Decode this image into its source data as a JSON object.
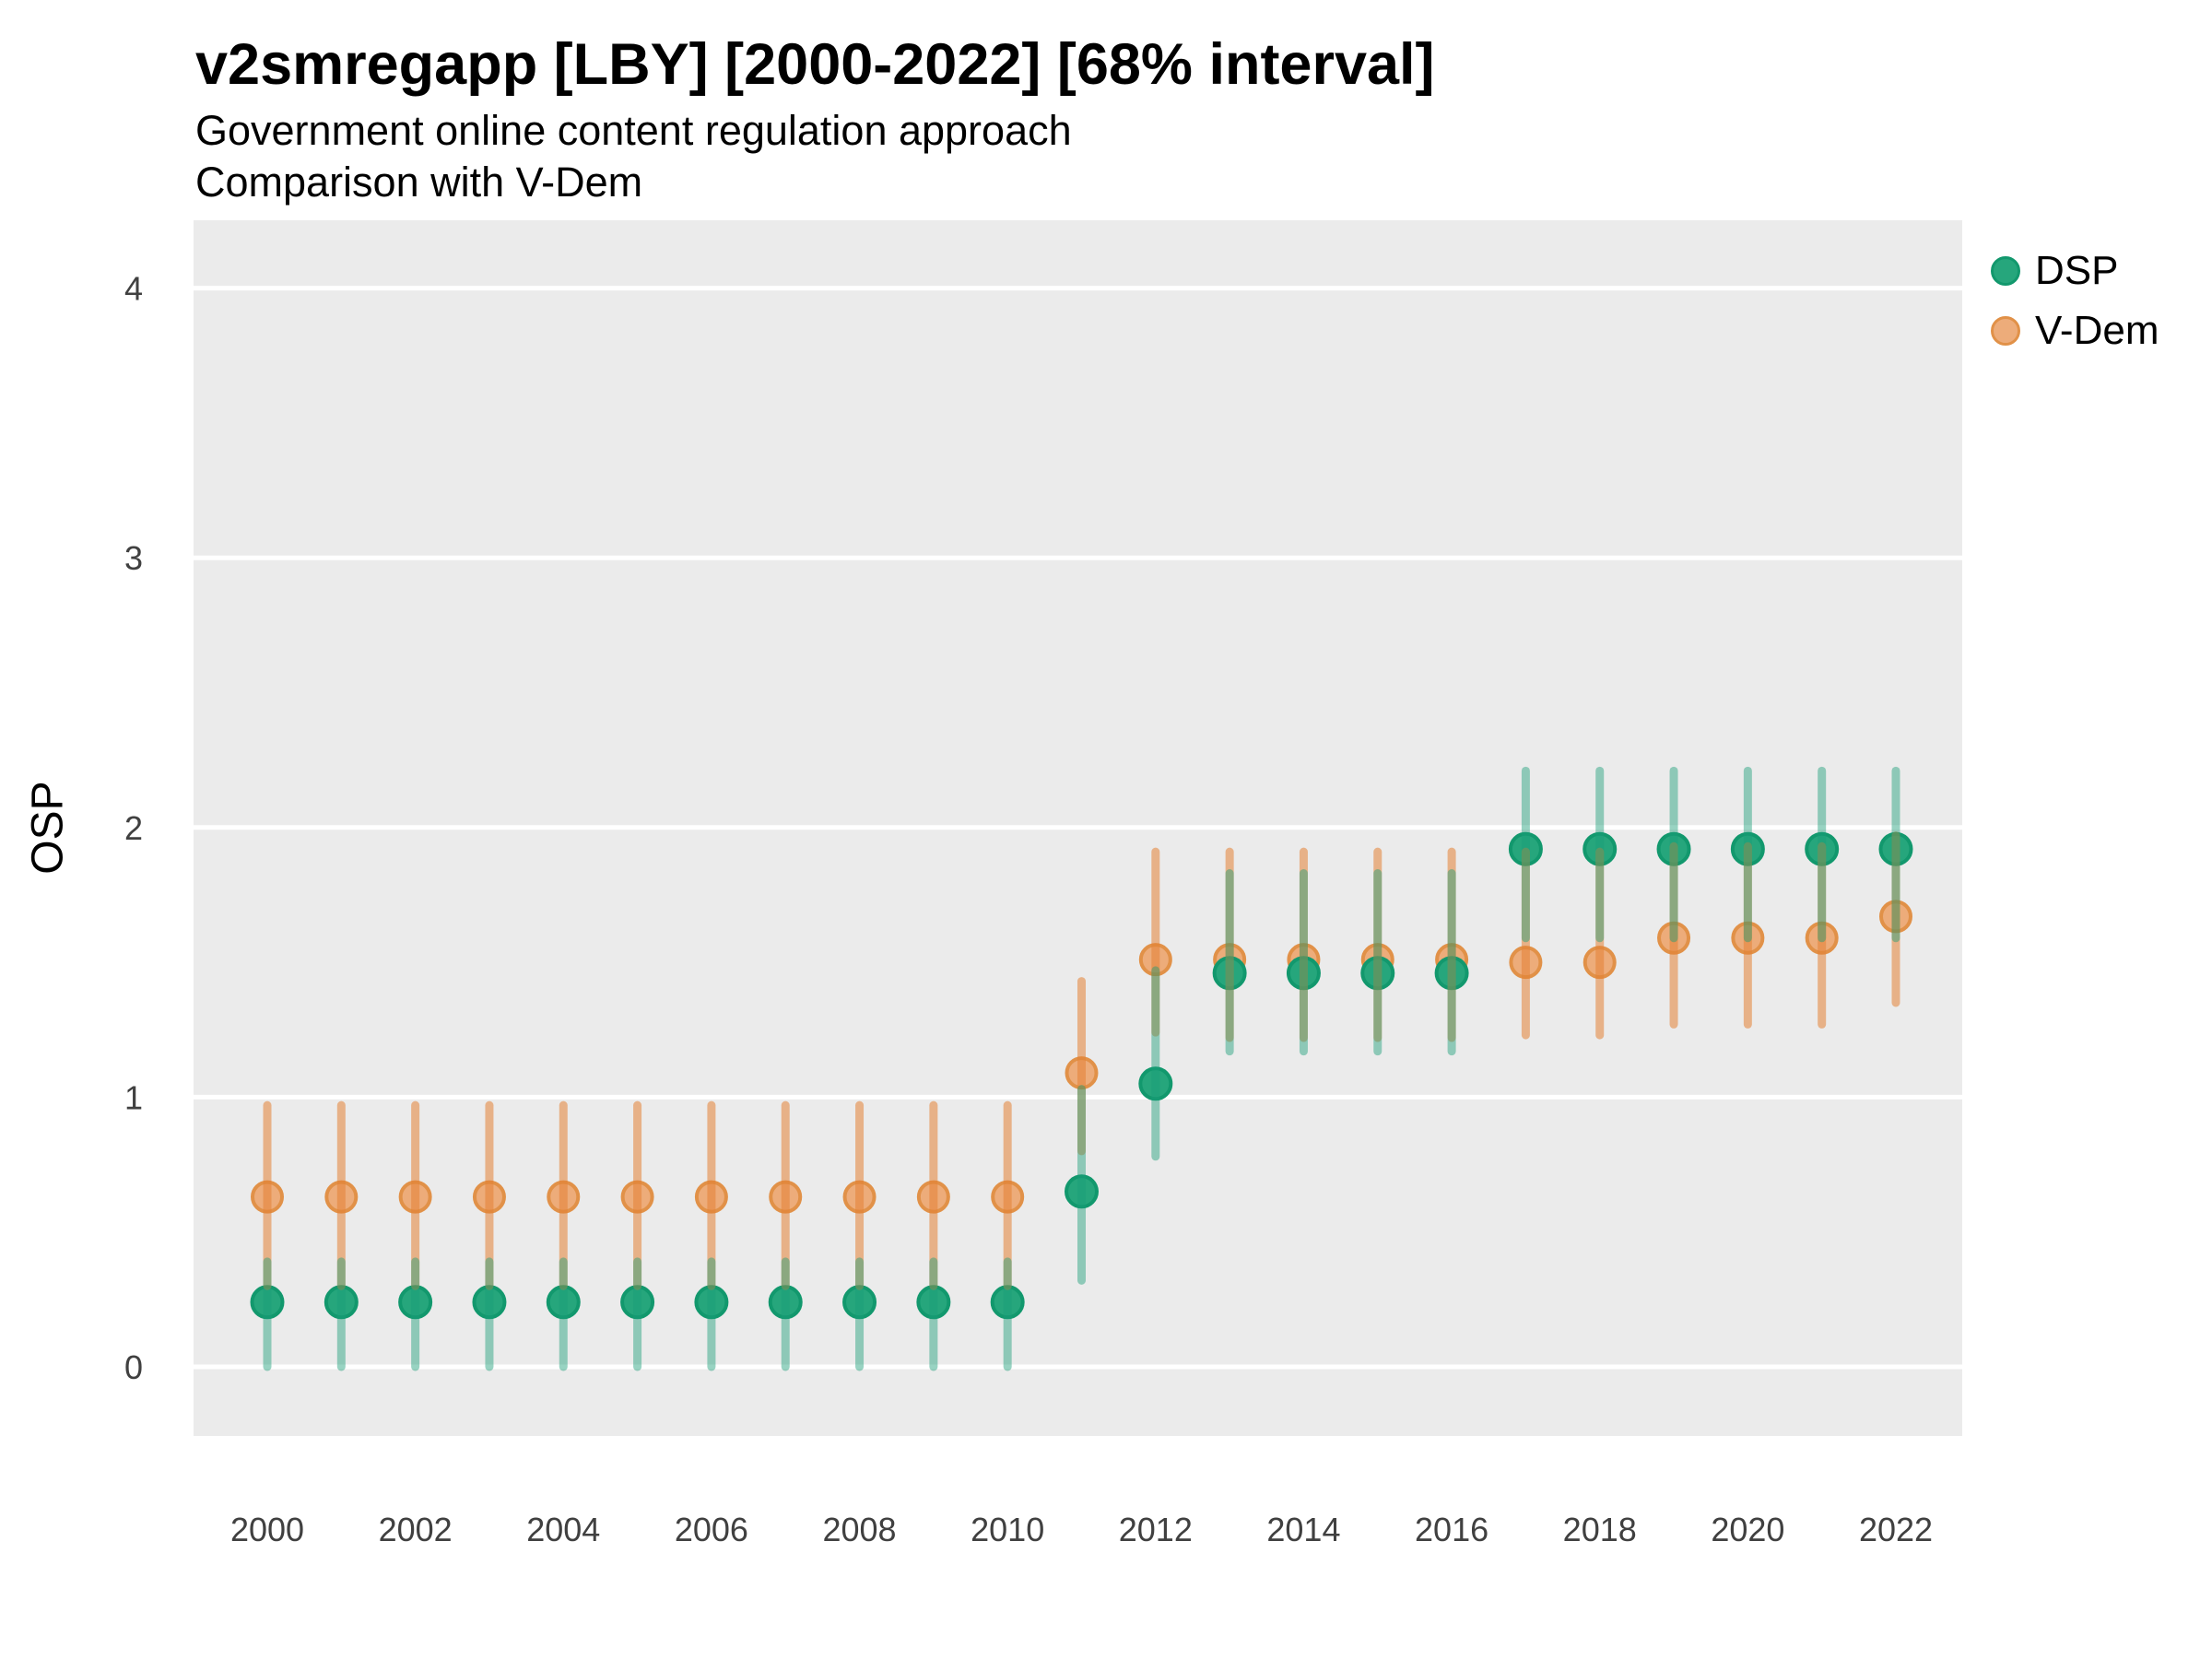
{
  "header": {
    "title": "v2smregapp [LBY] [2000-2022] [68% interval]",
    "subtitle1": "Government online content regulation approach",
    "subtitle2": "Comparison with V-Dem"
  },
  "axes": {
    "y_label": "OSP",
    "y_ticks": [
      0,
      1,
      2,
      3,
      4
    ],
    "x_ticks": [
      2000,
      2002,
      2004,
      2006,
      2008,
      2010,
      2012,
      2014,
      2016,
      2018,
      2020,
      2022
    ]
  },
  "legend": {
    "position": "right",
    "items": [
      {
        "label": "DSP",
        "marker": "circle",
        "fill": "#26a67c",
        "border": "#12986d"
      },
      {
        "label": "V-Dem",
        "marker": "circle",
        "fill": "#edac7a",
        "border": "#e19148"
      }
    ]
  },
  "colors": {
    "panel_bg": "#ebebeb",
    "gridline": "#ffffff",
    "tick_text": "#404040",
    "dsp_dot_fill": "#26a67c",
    "dsp_dot_border": "#12986d",
    "dsp_bar": "rgba(27,158,119,0.45)",
    "vdem_dot_fill": "#edac7a",
    "vdem_dot_border": "#e19148",
    "vdem_bar": "rgba(227,130,53,0.55)"
  },
  "chart_data": {
    "type": "scatter",
    "subtype": "point-interval-comparison",
    "title": "v2smregapp [LBY] [2000-2022] [68% interval]",
    "subtitle": "Government online content regulation approach — Comparison with V-Dem",
    "interval": "68%",
    "xlabel": "",
    "ylabel": "OSP",
    "ylim": [
      -0.26,
      4.26
    ],
    "yticks": [
      0,
      1,
      2,
      3,
      4
    ],
    "xticks": [
      2000,
      2002,
      2004,
      2006,
      2008,
      2010,
      2012,
      2014,
      2016,
      2018,
      2020,
      2022
    ],
    "grid": "major-horizontal-white-on-gray",
    "legend_position": "right",
    "x": [
      2000,
      2001,
      2002,
      2003,
      2004,
      2005,
      2006,
      2007,
      2008,
      2009,
      2010,
      2011,
      2012,
      2013,
      2014,
      2015,
      2016,
      2017,
      2018,
      2019,
      2020,
      2021,
      2022
    ],
    "series": [
      {
        "name": "DSP",
        "values": [
          0.24,
          0.24,
          0.24,
          0.24,
          0.24,
          0.24,
          0.24,
          0.24,
          0.24,
          0.24,
          0.24,
          0.65,
          1.05,
          1.46,
          1.46,
          1.46,
          1.46,
          1.92,
          1.92,
          1.92,
          1.92,
          1.92,
          1.92
        ],
        "lo": [
          0.0,
          0.0,
          0.0,
          0.0,
          0.0,
          0.0,
          0.0,
          0.0,
          0.0,
          0.0,
          0.0,
          0.32,
          0.78,
          1.17,
          1.17,
          1.17,
          1.17,
          1.59,
          1.59,
          1.59,
          1.59,
          1.59,
          1.59
        ],
        "hi": [
          0.39,
          0.39,
          0.39,
          0.39,
          0.39,
          0.39,
          0.39,
          0.39,
          0.39,
          0.39,
          0.39,
          1.03,
          1.47,
          1.83,
          1.83,
          1.83,
          1.83,
          2.21,
          2.21,
          2.21,
          2.21,
          2.21,
          2.21
        ]
      },
      {
        "name": "V-Dem",
        "values": [
          0.63,
          0.63,
          0.63,
          0.63,
          0.63,
          0.63,
          0.63,
          0.63,
          0.63,
          0.63,
          0.63,
          1.09,
          1.51,
          1.51,
          1.51,
          1.51,
          1.51,
          1.5,
          1.5,
          1.59,
          1.59,
          1.59,
          1.67
        ],
        "lo": [
          0.3,
          0.3,
          0.3,
          0.3,
          0.3,
          0.3,
          0.3,
          0.3,
          0.3,
          0.3,
          0.3,
          0.8,
          1.24,
          1.22,
          1.22,
          1.22,
          1.22,
          1.23,
          1.23,
          1.27,
          1.27,
          1.27,
          1.35
        ],
        "hi": [
          0.97,
          0.97,
          0.97,
          0.97,
          0.97,
          0.97,
          0.97,
          0.97,
          0.97,
          0.97,
          0.97,
          1.43,
          1.91,
          1.91,
          1.91,
          1.91,
          1.91,
          1.91,
          1.91,
          1.93,
          1.93,
          1.93,
          1.97
        ]
      }
    ]
  }
}
